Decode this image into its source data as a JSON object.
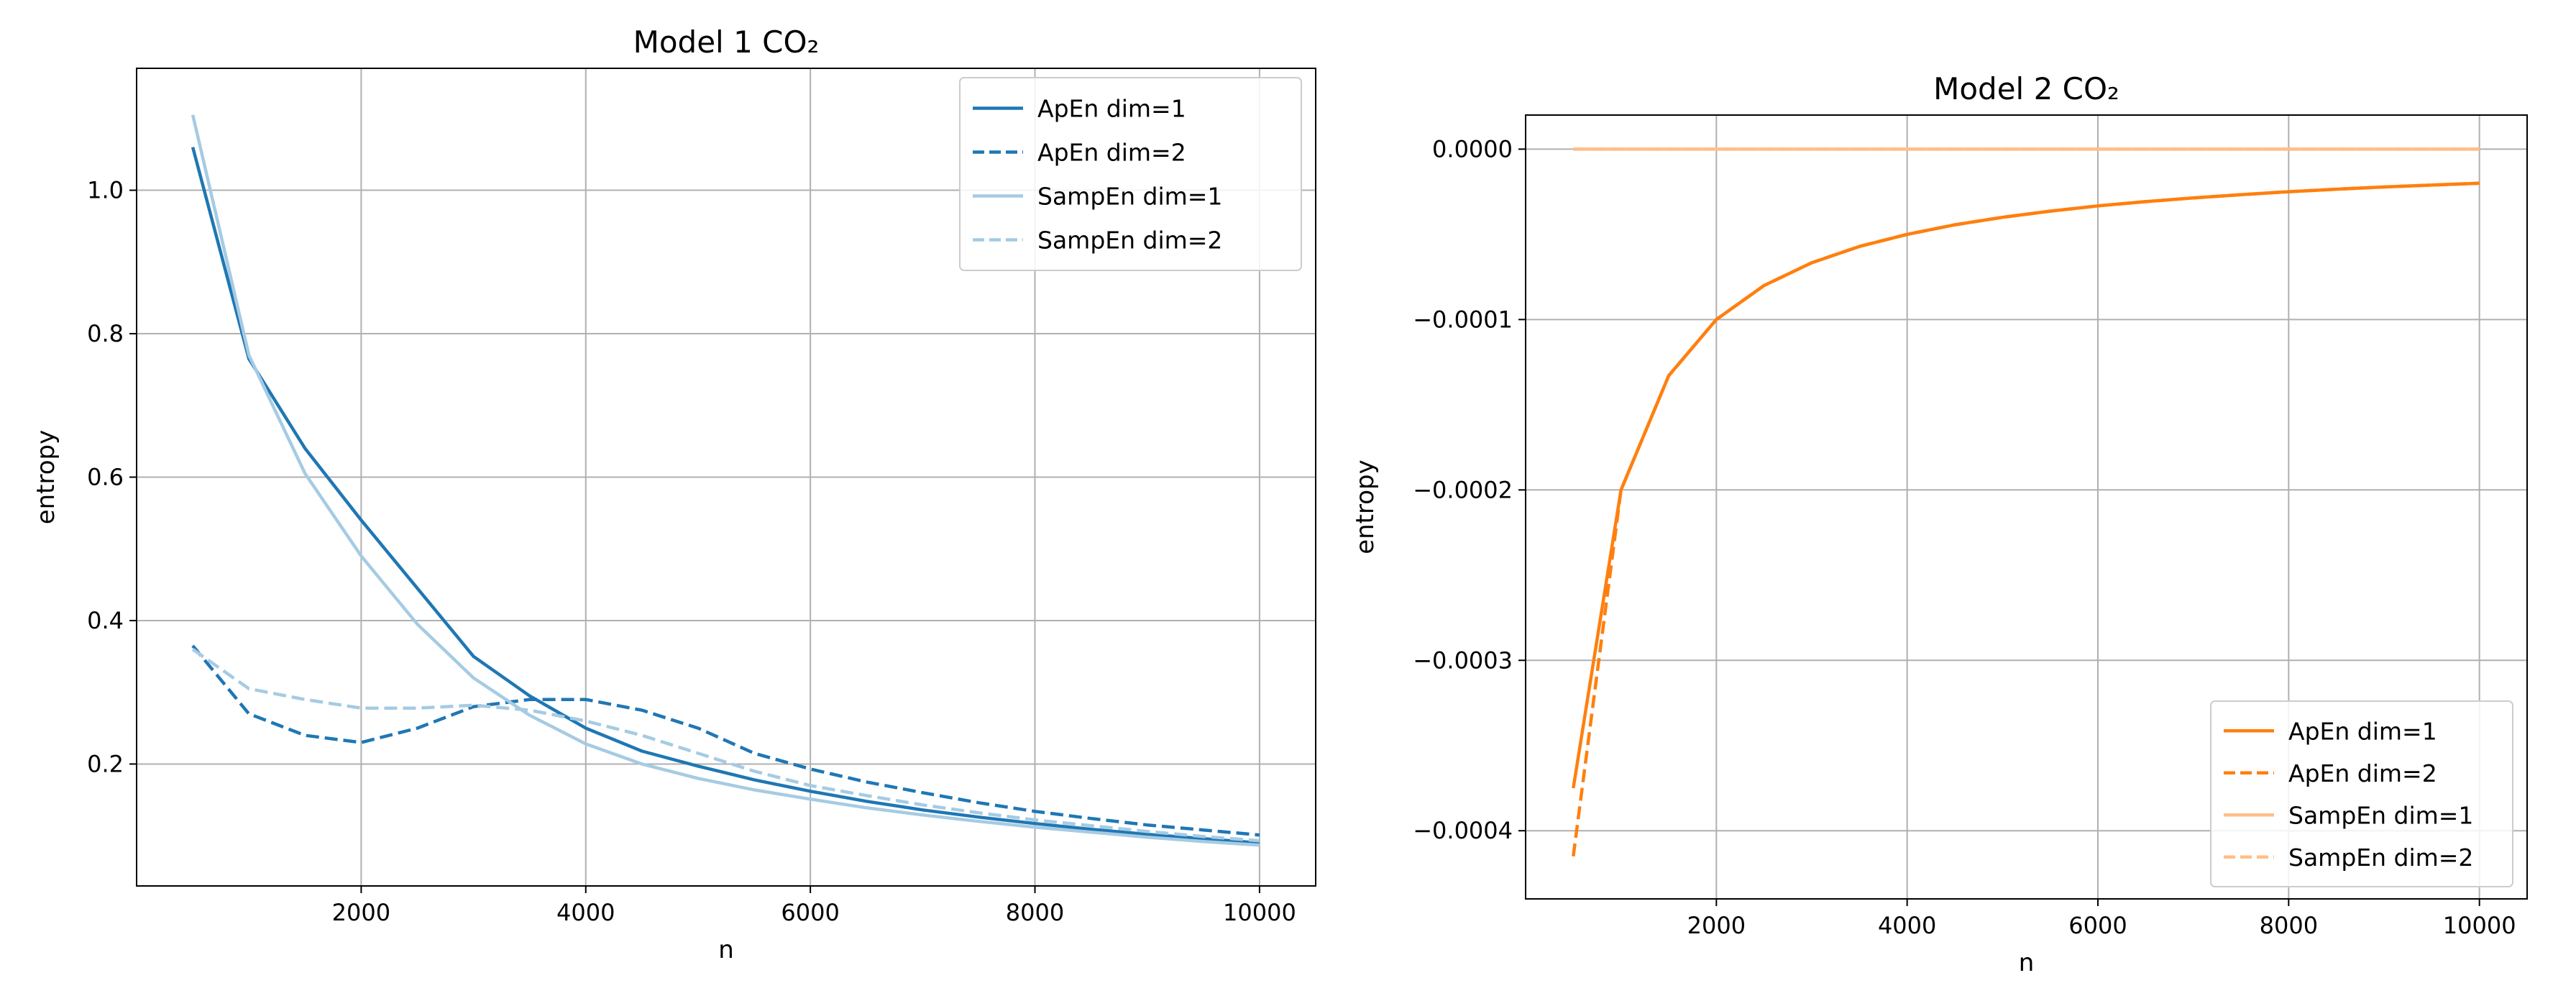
{
  "chart_data": [
    {
      "type": "line",
      "title": "Model 1 CO₂",
      "xlabel": "n",
      "ylabel": "entropy",
      "xlim": [
        0,
        10500
      ],
      "ylim": [
        0.03,
        1.17
      ],
      "xticks": [
        2000,
        4000,
        6000,
        8000,
        10000
      ],
      "xtick_labels": [
        "2000",
        "4000",
        "6000",
        "8000",
        "10000"
      ],
      "yticks": [
        0.2,
        0.4,
        0.6,
        0.8,
        1.0
      ],
      "ytick_labels": [
        "0.2",
        "0.4",
        "0.6",
        "0.8",
        "1.0"
      ],
      "grid": true,
      "legend_position": "top-right",
      "x": [
        500,
        1000,
        1500,
        2000,
        2500,
        3000,
        3500,
        4000,
        4500,
        5000,
        5500,
        6000,
        6500,
        7000,
        7500,
        8000,
        8500,
        9000,
        9500,
        10000
      ],
      "series": [
        {
          "name": "ApEn dim=1",
          "color": "#1f77b4",
          "style": "solid",
          "values": [
            1.06,
            0.765,
            0.64,
            0.54,
            0.445,
            0.35,
            0.295,
            0.25,
            0.218,
            0.197,
            0.178,
            0.162,
            0.148,
            0.136,
            0.126,
            0.117,
            0.109,
            0.102,
            0.096,
            0.09
          ]
        },
        {
          "name": "ApEn dim=2",
          "color": "#1f77b4",
          "style": "dashed",
          "values": [
            0.365,
            0.27,
            0.24,
            0.23,
            0.25,
            0.28,
            0.29,
            0.29,
            0.275,
            0.25,
            0.215,
            0.193,
            0.175,
            0.16,
            0.146,
            0.134,
            0.124,
            0.115,
            0.108,
            0.101
          ]
        },
        {
          "name": "SampEn dim=1",
          "color": "#a6cbe3",
          "style": "solid",
          "values": [
            1.105,
            0.77,
            0.605,
            0.49,
            0.395,
            0.32,
            0.268,
            0.228,
            0.2,
            0.18,
            0.164,
            0.151,
            0.139,
            0.129,
            0.12,
            0.112,
            0.105,
            0.098,
            0.092,
            0.087
          ]
        },
        {
          "name": "SampEn dim=2",
          "color": "#a6cbe3",
          "style": "dashed",
          "values": [
            0.36,
            0.305,
            0.29,
            0.278,
            0.278,
            0.282,
            0.275,
            0.26,
            0.24,
            0.215,
            0.19,
            0.17,
            0.156,
            0.143,
            0.132,
            0.122,
            0.114,
            0.106,
            0.099,
            0.093
          ]
        }
      ]
    },
    {
      "type": "line",
      "title": "Model 2 CO₂",
      "xlabel": "n",
      "ylabel": "entropy",
      "xlim": [
        0,
        10500
      ],
      "ylim": [
        -0.00044,
        2e-05
      ],
      "xticks": [
        2000,
        4000,
        6000,
        8000,
        10000
      ],
      "xtick_labels": [
        "2000",
        "4000",
        "6000",
        "8000",
        "10000"
      ],
      "yticks": [
        0.0,
        -0.0001,
        -0.0002,
        -0.0003,
        -0.0004
      ],
      "ytick_labels": [
        "0.0000",
        "−0.0001",
        "−0.0002",
        "−0.0003",
        "−0.0004"
      ],
      "grid": true,
      "legend_position": "bottom-right",
      "x": [
        500,
        1000,
        1500,
        2000,
        2500,
        3000,
        3500,
        4000,
        4500,
        5000,
        5500,
        6000,
        6500,
        7000,
        7500,
        8000,
        8500,
        9000,
        9500,
        10000
      ],
      "series": [
        {
          "name": "ApEn dim=1",
          "color": "#ff7f0e",
          "style": "solid",
          "values": [
            -0.000375,
            -0.0002,
            -0.000133,
            -0.0001,
            -8e-05,
            -6.67e-05,
            -5.71e-05,
            -5e-05,
            -4.44e-05,
            -4e-05,
            -3.64e-05,
            -3.33e-05,
            -3.08e-05,
            -2.86e-05,
            -2.67e-05,
            -2.5e-05,
            -2.35e-05,
            -2.22e-05,
            -2.11e-05,
            -2e-05
          ]
        },
        {
          "name": "ApEn dim=2",
          "color": "#ff7f0e",
          "style": "dashed",
          "values": [
            -0.000415,
            -0.0002,
            -0.000133,
            -0.0001,
            -8e-05,
            -6.67e-05,
            -5.71e-05,
            -5e-05,
            -4.44e-05,
            -4e-05,
            -3.64e-05,
            -3.33e-05,
            -3.08e-05,
            -2.86e-05,
            -2.67e-05,
            -2.5e-05,
            -2.35e-05,
            -2.22e-05,
            -2.11e-05,
            -2e-05
          ]
        },
        {
          "name": "SampEn dim=1",
          "color": "#ffbf86",
          "style": "solid",
          "values": [
            0,
            0,
            0,
            0,
            0,
            0,
            0,
            0,
            0,
            0,
            0,
            0,
            0,
            0,
            0,
            0,
            0,
            0,
            0,
            0
          ]
        },
        {
          "name": "SampEn dim=2",
          "color": "#ffbf86",
          "style": "dashed",
          "values": [
            0,
            0,
            0,
            0,
            0,
            0,
            0,
            0,
            0,
            0,
            0,
            0,
            0,
            0,
            0,
            0,
            0,
            0,
            0,
            0
          ]
        }
      ]
    }
  ]
}
